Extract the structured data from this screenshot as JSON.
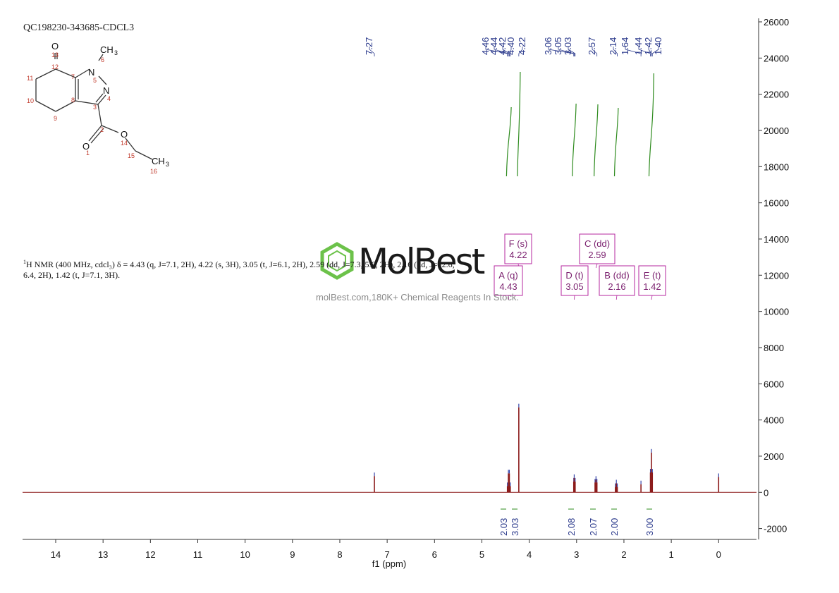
{
  "sample_id": "QC198230-343685-CDCL3",
  "nmr_description": {
    "prefix": "1",
    "text": "H NMR (400 MHz, cdcl₃) δ = 4.43 (q, J=7.1, 2H), 4.22 (s, 3H), 3.05 (t, J=6.1, 2H), 2.59 (dd, J=7.3, 5.6, 2H), 2.16 (dd, J=12.6, 6.4, 2H), 1.42 (t, J=7.1, 3H)."
  },
  "watermark": {
    "name": "MolBest",
    "tagline": "molBest.com,180K+ Chemical Reagents In Stock."
  },
  "structure": {
    "atoms": [
      "O",
      "CH3",
      "N",
      "N",
      "O",
      "O",
      "CH3"
    ],
    "atom_numbers": [
      "1",
      "2",
      "3",
      "4",
      "5",
      "6",
      "7",
      "8",
      "9",
      "10",
      "11",
      "12",
      "13",
      "14",
      "15",
      "16"
    ]
  },
  "colors": {
    "spectrum": "#8b1a1a",
    "integral_curve": "#2e8b1e",
    "peak_label": "#2b3a8c",
    "multiplet_box": "#b4279f",
    "watermark_logo": "#6cc24a"
  },
  "chart_data": {
    "type": "line",
    "title": "",
    "xlabel": "f1 (ppm)",
    "ylabel": "",
    "x_reversed": true,
    "xlim": [
      14.7,
      -0.8
    ],
    "ylim": [
      -2600,
      26000
    ],
    "x_ticks": [
      14,
      13,
      12,
      11,
      10,
      9,
      8,
      7,
      6,
      5,
      4,
      3,
      2,
      1,
      0
    ],
    "y_ticks": [
      26000,
      24000,
      22000,
      20000,
      18000,
      16000,
      14000,
      12000,
      10000,
      8000,
      6000,
      4000,
      2000,
      0,
      -2000
    ],
    "peak_labels": [
      "7.27",
      "4.46",
      "4.44",
      "4.42",
      "4.40",
      "4.22",
      "3.06",
      "3.05",
      "3.03",
      "2.57",
      "2.14",
      "1.64",
      "1.44",
      "1.42",
      "1.40"
    ],
    "peaks": [
      {
        "ppm": 7.27,
        "intensity": 900
      },
      {
        "ppm": 4.46,
        "intensity": 350
      },
      {
        "ppm": 4.44,
        "intensity": 1050
      },
      {
        "ppm": 4.42,
        "intensity": 1050
      },
      {
        "ppm": 4.4,
        "intensity": 350
      },
      {
        "ppm": 4.22,
        "intensity": 4700
      },
      {
        "ppm": 3.06,
        "intensity": 600
      },
      {
        "ppm": 3.05,
        "intensity": 800
      },
      {
        "ppm": 3.03,
        "intensity": 600
      },
      {
        "ppm": 2.61,
        "intensity": 550
      },
      {
        "ppm": 2.59,
        "intensity": 700
      },
      {
        "ppm": 2.57,
        "intensity": 550
      },
      {
        "ppm": 2.18,
        "intensity": 300
      },
      {
        "ppm": 2.16,
        "intensity": 500
      },
      {
        "ppm": 2.14,
        "intensity": 300
      },
      {
        "ppm": 1.64,
        "intensity": 450
      },
      {
        "ppm": 1.44,
        "intensity": 1100
      },
      {
        "ppm": 1.42,
        "intensity": 2200
      },
      {
        "ppm": 1.4,
        "intensity": 1100
      },
      {
        "ppm": 0.0,
        "intensity": 850
      }
    ],
    "multiplets": [
      {
        "label": "F (s)",
        "value": "4.22",
        "ppm": 4.22
      },
      {
        "label": "C (dd)",
        "value": "2.59",
        "ppm": 2.59
      },
      {
        "label": "A (q)",
        "value": "4.43",
        "ppm": 4.43
      },
      {
        "label": "D (t)",
        "value": "3.05",
        "ppm": 3.05
      },
      {
        "label": "B (dd)",
        "value": "2.16",
        "ppm": 2.16
      },
      {
        "label": "E (t)",
        "value": "1.42",
        "ppm": 1.42
      }
    ],
    "integrals": [
      {
        "value": "2.03",
        "from": 4.48,
        "to": 4.38
      },
      {
        "value": "3.03",
        "from": 4.25,
        "to": 4.19
      },
      {
        "value": "2.08",
        "from": 3.09,
        "to": 3.01
      },
      {
        "value": "2.07",
        "from": 2.63,
        "to": 2.55
      },
      {
        "value": "2.00",
        "from": 2.2,
        "to": 2.12
      },
      {
        "value": "3.00",
        "from": 1.47,
        "to": 1.37
      }
    ]
  }
}
